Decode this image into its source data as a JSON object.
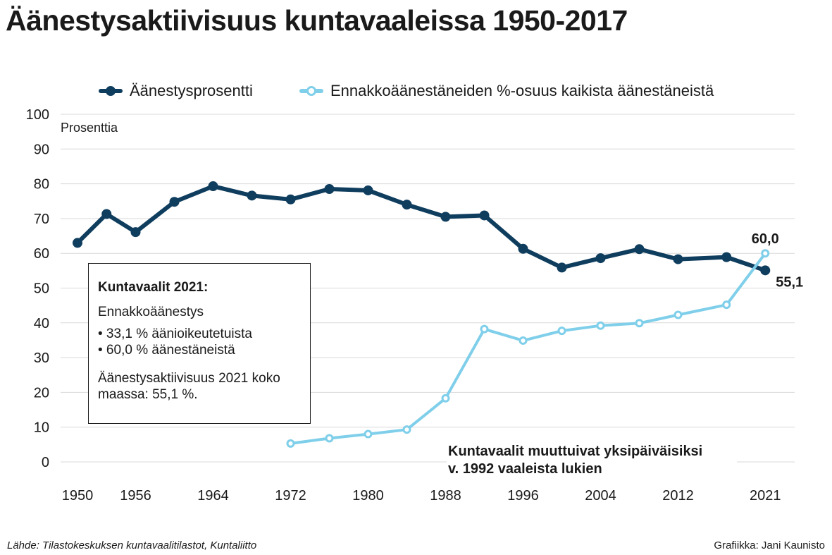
{
  "header": {
    "title": "Äänestysaktiivisuus kuntavaaleissa 1950-2017"
  },
  "legend": [
    {
      "label": "Äänestysprosentti",
      "color": "#0f3d5e"
    },
    {
      "label": "Ennakkoäänestäneiden %-osuus kaikista äänestäneistä",
      "color": "#7fcfea"
    }
  ],
  "chart_data": {
    "type": "line",
    "ylabel": "Prosenttia",
    "ylim": [
      0,
      100
    ],
    "yticks": [
      0,
      10,
      20,
      30,
      40,
      50,
      60,
      70,
      80,
      90,
      100
    ],
    "xlim": [
      1950,
      2022
    ],
    "xticks": [
      1950,
      1956,
      1964,
      1972,
      1980,
      1988,
      1996,
      2004,
      2012,
      2021
    ],
    "grid": true,
    "legend_position": "top",
    "series": [
      {
        "name": "Äänestysprosentti",
        "color": "#0f3d5e",
        "x": [
          1950,
          1953,
          1956,
          1960,
          1964,
          1968,
          1972,
          1976,
          1980,
          1984,
          1988,
          1992,
          1996,
          2000,
          2004,
          2008,
          2012,
          2017,
          2021
        ],
        "values": [
          63.0,
          71.3,
          66.1,
          74.8,
          79.3,
          76.6,
          75.5,
          78.5,
          78.1,
          74.0,
          70.5,
          70.9,
          61.3,
          55.9,
          58.6,
          61.2,
          58.3,
          58.9,
          55.1
        ]
      },
      {
        "name": "Ennakkoäänestäneiden %-osuus kaikista äänestäneistä",
        "color": "#7fcfea",
        "x": [
          1972,
          1976,
          1980,
          1984,
          1988,
          1992,
          1996,
          2000,
          2004,
          2008,
          2012,
          2017,
          2021
        ],
        "values": [
          5.3,
          6.8,
          8.0,
          9.3,
          18.3,
          38.2,
          34.9,
          37.7,
          39.2,
          39.9,
          42.3,
          45.2,
          60.0
        ]
      }
    ],
    "data_labels": [
      {
        "series": 1,
        "text": "60,0"
      },
      {
        "series": 0,
        "text": "55,1"
      }
    ]
  },
  "infobox": {
    "heading": "Kuntavaalit 2021:",
    "subheading": "Ennakkoäänestys",
    "bullets": [
      "• 33,1 % äänioikeutetuista",
      "• 60,0 % äänestäneistä"
    ],
    "total": "Äänestysaktiivisuus 2021 koko maassa: 55,1 %."
  },
  "annotation": {
    "line1": "Kuntavaalit muuttuivat yksipäiväisiksi",
    "line2": "v. 1992 vaaleista lukien"
  },
  "footer": {
    "source": "Lähde: Tilastokeskuksen kuntavaalitilastot, Kuntaliitto",
    "credit": "Grafiikka: Jani Kaunisto"
  }
}
